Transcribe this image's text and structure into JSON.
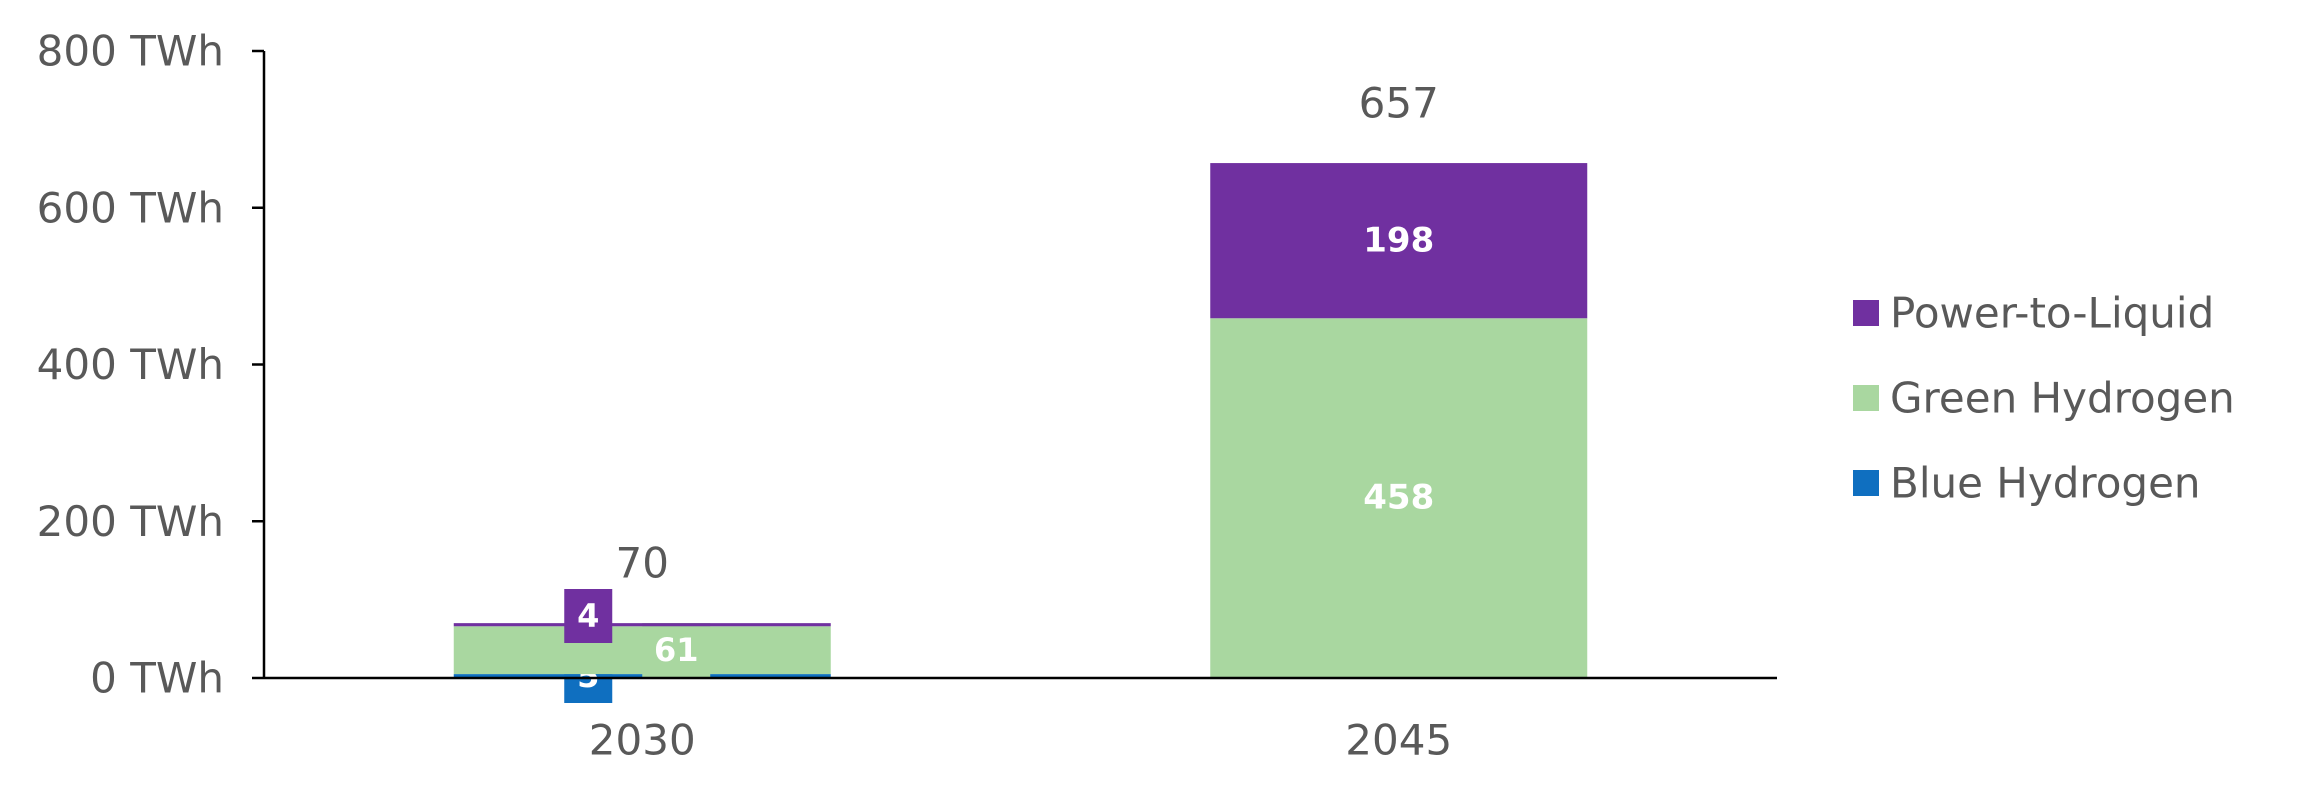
{
  "chart_data": {
    "type": "stacked-bar",
    "categories": [
      "2030",
      "2045"
    ],
    "series": [
      {
        "name": "Blue Hydrogen",
        "color": "#0f6fc0",
        "values": [
          5,
          1
        ],
        "value_labels": [
          "5",
          null
        ]
      },
      {
        "name": "Green Hydrogen",
        "color": "#a9d7a0",
        "values": [
          61,
          458
        ]
      },
      {
        "name": "Power-to-Liquid",
        "color": "#7030a0",
        "values": [
          4,
          198
        ]
      }
    ],
    "totals": [
      70,
      657
    ],
    "ylim": [
      0,
      800
    ],
    "yticks": [
      {
        "value": 0,
        "label": "0 TWh"
      },
      {
        "value": 200,
        "label": "200 TWh"
      },
      {
        "value": 400,
        "label": "400 TWh"
      },
      {
        "value": 600,
        "label": "600 TWh"
      },
      {
        "value": 800,
        "label": "800 TWh"
      }
    ],
    "legend": "right"
  }
}
